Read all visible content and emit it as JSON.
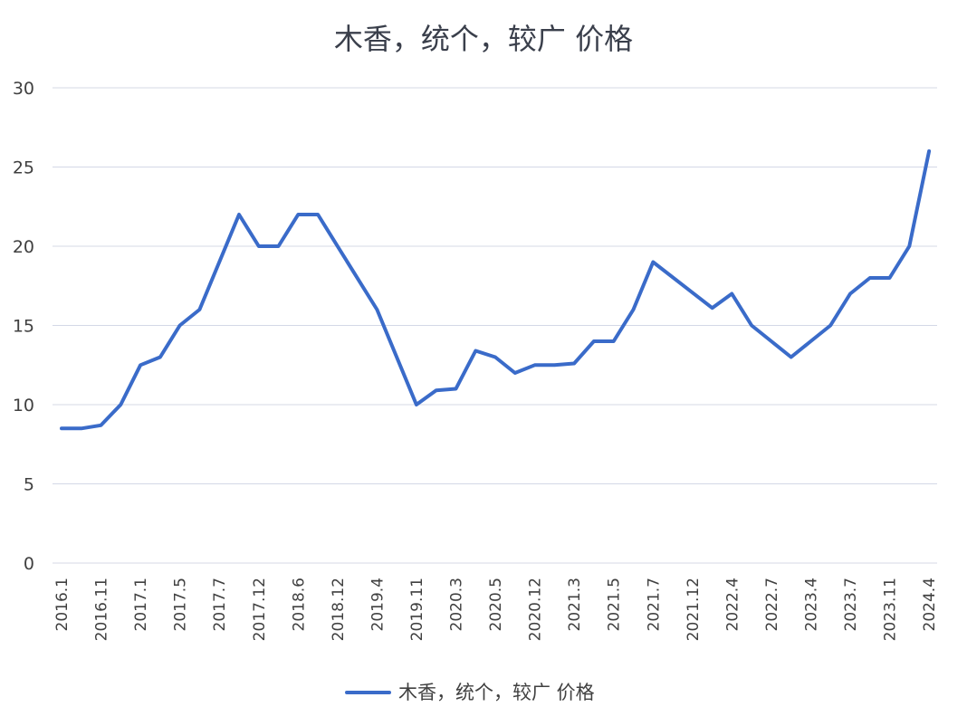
{
  "chart_data": {
    "type": "line",
    "title": "木香，统个，较广 价格",
    "xlabel": "",
    "ylabel": "",
    "ylim": [
      0,
      30
    ],
    "yticks": [
      "0",
      "5",
      "10",
      "15",
      "20",
      "25",
      "30"
    ],
    "grid": true,
    "legend_position": "bottom",
    "x_tick_labels": [
      "2016.1",
      "2016.11",
      "2017.1",
      "2017.5",
      "2017.7",
      "2017.12",
      "2018.6",
      "2018.12",
      "2019.4",
      "2019.11",
      "2020.3",
      "2020.5",
      "2020.12",
      "2021.3",
      "2021.5",
      "2021.7",
      "2021.12",
      "2022.4",
      "2022.7",
      "2023.4",
      "2023.7",
      "2023.11",
      "2024.4"
    ],
    "series": [
      {
        "name": "木香，统个，较广 价格",
        "color": "#3a6bc9",
        "points": [
          [
            0,
            8.5
          ],
          [
            0.5,
            8.5
          ],
          [
            1,
            8.7
          ],
          [
            1.5,
            10
          ],
          [
            2,
            12.5
          ],
          [
            2.5,
            13
          ],
          [
            3,
            15
          ],
          [
            3.5,
            16
          ],
          [
            4,
            19
          ],
          [
            4.5,
            22
          ],
          [
            5,
            20
          ],
          [
            5.5,
            20
          ],
          [
            6,
            22
          ],
          [
            6.5,
            22
          ],
          [
            7,
            20
          ],
          [
            8,
            16
          ],
          [
            9,
            10
          ],
          [
            9.5,
            10.9
          ],
          [
            10,
            11
          ],
          [
            10.5,
            13.4
          ],
          [
            11,
            13
          ],
          [
            11.5,
            12
          ],
          [
            12,
            12.5
          ],
          [
            12.5,
            12.5
          ],
          [
            13,
            12.6
          ],
          [
            13.5,
            14
          ],
          [
            14,
            14
          ],
          [
            14.5,
            16
          ],
          [
            15,
            19
          ],
          [
            16.5,
            16.1
          ],
          [
            17,
            17
          ],
          [
            17.5,
            15
          ],
          [
            18,
            14
          ],
          [
            18.5,
            13
          ],
          [
            19,
            14
          ],
          [
            19.5,
            15
          ],
          [
            20,
            17
          ],
          [
            20.5,
            18
          ],
          [
            21,
            18
          ],
          [
            21.5,
            20
          ],
          [
            22,
            26
          ]
        ]
      }
    ]
  }
}
